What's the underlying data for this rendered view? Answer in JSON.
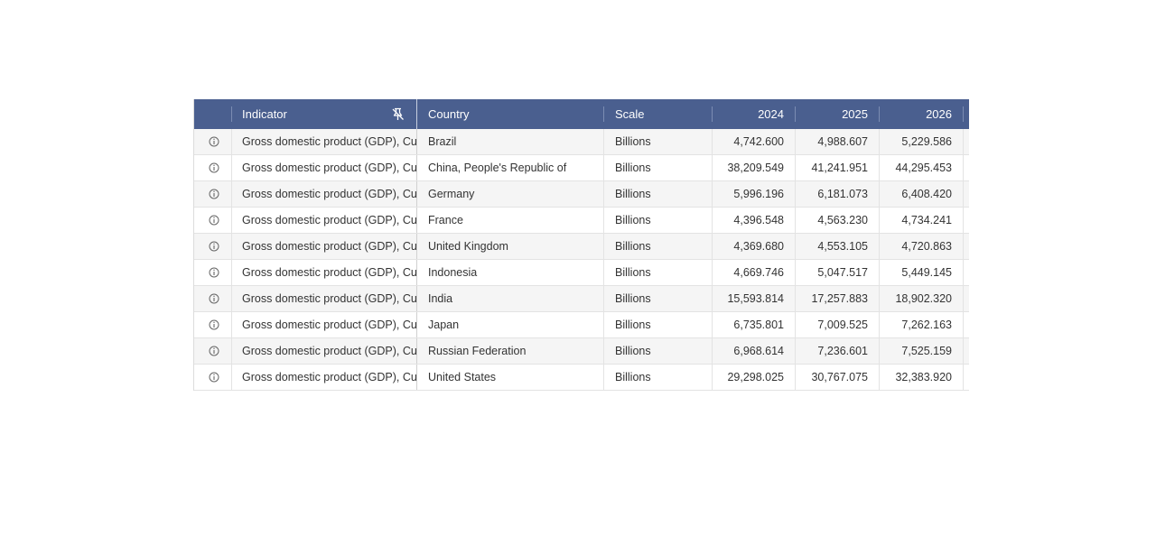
{
  "columns": {
    "indicator": "Indicator",
    "country": "Country",
    "scale": "Scale",
    "y2024": "2024",
    "y2025": "2025",
    "y2026": "2026"
  },
  "icons": {
    "info": "info-icon",
    "pin": "unpin-icon"
  },
  "colors": {
    "header_bg": "#4a5f8f",
    "row_alt_bg": "#f5f5f5"
  },
  "rows": [
    {
      "indicator": "Gross domestic product (GDP), Cu",
      "country": "Brazil",
      "scale": "Billions",
      "v2024": "4,742.600",
      "v2025": "4,988.607",
      "v2026": "5,229.586"
    },
    {
      "indicator": "Gross domestic product (GDP), Cu",
      "country": "China, People's Republic of",
      "scale": "Billions",
      "v2024": "38,209.549",
      "v2025": "41,241.951",
      "v2026": "44,295.453"
    },
    {
      "indicator": "Gross domestic product (GDP), Cu",
      "country": "Germany",
      "scale": "Billions",
      "v2024": "5,996.196",
      "v2025": "6,181.073",
      "v2026": "6,408.420"
    },
    {
      "indicator": "Gross domestic product (GDP), Cu",
      "country": "France",
      "scale": "Billions",
      "v2024": "4,396.548",
      "v2025": "4,563.230",
      "v2026": "4,734.241"
    },
    {
      "indicator": "Gross domestic product (GDP), Cu",
      "country": "United Kingdom",
      "scale": "Billions",
      "v2024": "4,369.680",
      "v2025": "4,553.105",
      "v2026": "4,720.863"
    },
    {
      "indicator": "Gross domestic product (GDP), Cu",
      "country": "Indonesia",
      "scale": "Billions",
      "v2024": "4,669.746",
      "v2025": "5,047.517",
      "v2026": "5,449.145"
    },
    {
      "indicator": "Gross domestic product (GDP), Cu",
      "country": "India",
      "scale": "Billions",
      "v2024": "15,593.814",
      "v2025": "17,257.883",
      "v2026": "18,902.320"
    },
    {
      "indicator": "Gross domestic product (GDP), Cu",
      "country": "Japan",
      "scale": "Billions",
      "v2024": "6,735.801",
      "v2025": "7,009.525",
      "v2026": "7,262.163"
    },
    {
      "indicator": "Gross domestic product (GDP), Cu",
      "country": "Russian Federation",
      "scale": "Billions",
      "v2024": "6,968.614",
      "v2025": "7,236.601",
      "v2026": "7,525.159"
    },
    {
      "indicator": "Gross domestic product (GDP), Cu",
      "country": "United States",
      "scale": "Billions",
      "v2024": "29,298.025",
      "v2025": "30,767.075",
      "v2026": "32,383.920"
    }
  ]
}
